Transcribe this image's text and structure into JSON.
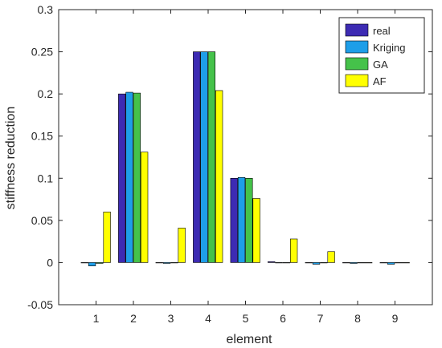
{
  "chart_data": {
    "type": "bar",
    "title": "",
    "xlabel": "element",
    "ylabel": "stiffness reduction",
    "categories": [
      "1",
      "2",
      "3",
      "4",
      "5",
      "6",
      "7",
      "8",
      "9"
    ],
    "ylim": [
      -0.05,
      0.3
    ],
    "yticks": [
      "-0.05",
      "0",
      "0.05",
      "0.1",
      "0.15",
      "0.2",
      "0.25",
      "0.3"
    ],
    "grid": false,
    "legend_position": "top-right",
    "series": [
      {
        "name": "real",
        "color": "#3d2bb3",
        "values": [
          0,
          0.2,
          0,
          0.25,
          0.1,
          0.001,
          0,
          0,
          0
        ]
      },
      {
        "name": "Kriging",
        "color": "#1e9ee8",
        "values": [
          -0.004,
          0.202,
          -0.001,
          0.25,
          0.101,
          0,
          -0.002,
          -0.001,
          -0.002
        ]
      },
      {
        "name": "GA",
        "color": "#45c24a",
        "values": [
          -0.001,
          0.201,
          0,
          0.25,
          0.1,
          0,
          0,
          0,
          0
        ]
      },
      {
        "name": "AF",
        "color": "#ffff00",
        "values": [
          0.06,
          0.131,
          0.041,
          0.204,
          0.076,
          0.028,
          0.013,
          0,
          0
        ]
      }
    ]
  }
}
